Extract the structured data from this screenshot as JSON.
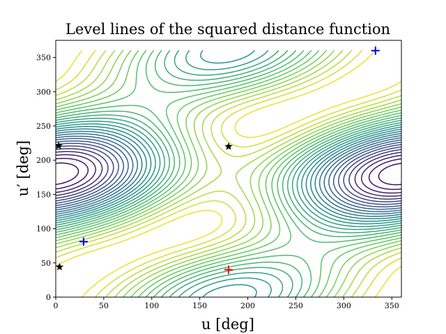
{
  "chart_data": {
    "type": "contour",
    "title": "Level lines of the squared distance function",
    "xlabel": "u [deg]",
    "ylabel": "u′ [deg]",
    "xlim": [
      0,
      360
    ],
    "ylim": [
      0,
      375
    ],
    "xticks": [
      0,
      50,
      100,
      150,
      200,
      250,
      300,
      350
    ],
    "yticks": [
      0,
      50,
      100,
      150,
      200,
      250,
      300,
      350
    ],
    "colormap": "viridis",
    "grid": false,
    "markers": [
      {
        "kind": "plus",
        "color": "#0000ff",
        "x": 29,
        "y": 81
      },
      {
        "kind": "plus",
        "color": "#0000ff",
        "x": 333,
        "y": 360
      },
      {
        "kind": "plus",
        "color": "#ff0000",
        "x": 180,
        "y": 40
      },
      {
        "kind": "star",
        "color": "#000000",
        "x": 3,
        "y": 221
      },
      {
        "kind": "star",
        "color": "#000000",
        "x": 180,
        "y": 220
      },
      {
        "kind": "star",
        "color": "#000000",
        "x": 4,
        "y": 44
      }
    ]
  }
}
